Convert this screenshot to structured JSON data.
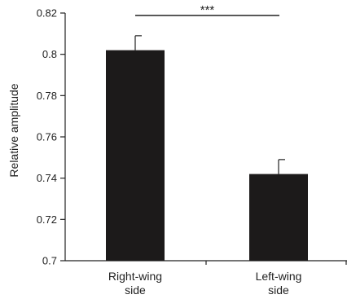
{
  "chart_data": {
    "type": "bar",
    "title": "",
    "xlabel": "",
    "ylabel": "Relative amplitude",
    "ylim": [
      0.7,
      0.82
    ],
    "yticks": [
      "0.7",
      "0.72",
      "0.74",
      "0.76",
      "0.78",
      "0.8",
      "0.82"
    ],
    "categories": [
      [
        "Right-wing",
        "side"
      ],
      [
        "Left-wing",
        "side"
      ]
    ],
    "values": [
      0.802,
      0.742
    ],
    "errors": [
      0.007,
      0.007
    ],
    "bar_color": "#1c1a1a",
    "significance": {
      "label": "***",
      "between": [
        0,
        1
      ]
    },
    "grid": false,
    "legend": "none"
  }
}
